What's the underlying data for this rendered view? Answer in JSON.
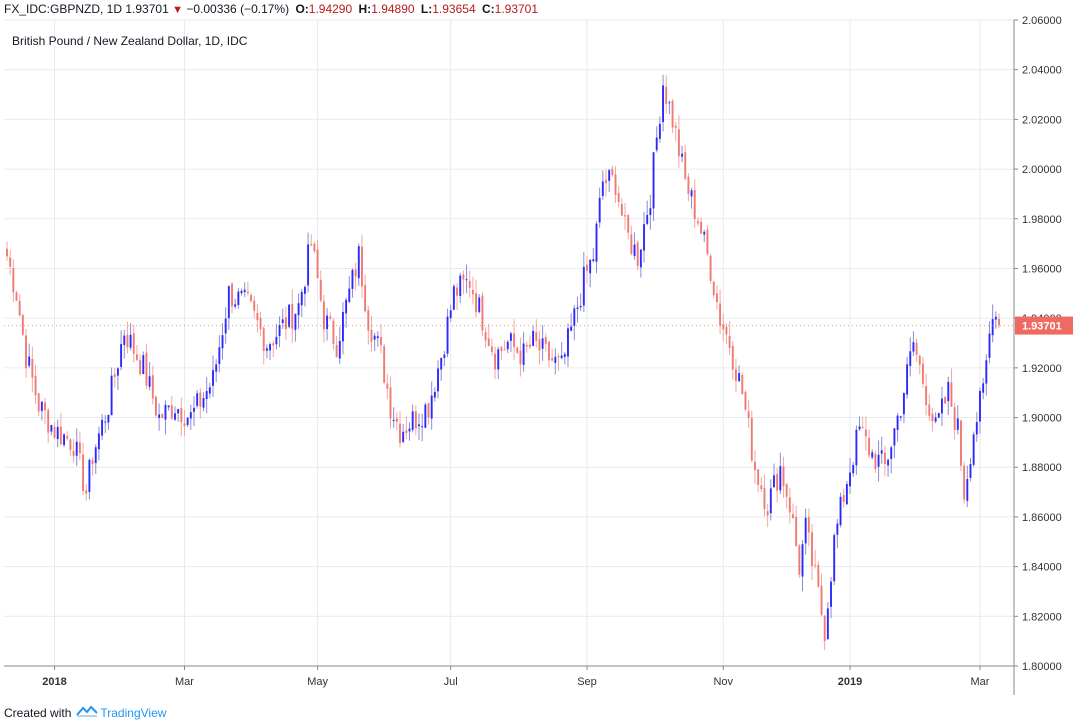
{
  "header": {
    "symbol": "FX_IDC:GBPNZD, 1D",
    "last": "1.93701",
    "change": "−0.00336 (−0.17%)",
    "o_label": "O:",
    "o": "1.94290",
    "h_label": "H:",
    "h": "1.94890",
    "l_label": "L:",
    "l": "1.93654",
    "c_label": "C:",
    "c": "1.93701",
    "down_icon": "triangle-down-icon"
  },
  "title": "British Pound / New Zealand Dollar, 1D, IDC",
  "footer": {
    "prefix": "Created with",
    "brand": "TradingView",
    "brand_icon": "tradingview-logo-icon"
  },
  "colors": {
    "up": "#2a2aff",
    "down": "#f07a72",
    "wick": "#6f8fb0",
    "grid": "#e6ebf0",
    "last_price_bg": "#ef6a60",
    "brand": "#2196f3"
  },
  "chart_data": {
    "type": "candlestick",
    "title": "British Pound / New Zealand Dollar, 1D, IDC",
    "xlabel": "",
    "ylabel": "",
    "ylim": [
      1.8,
      2.06
    ],
    "y_ticks": [
      1.8,
      1.82,
      1.84,
      1.86,
      1.88,
      1.9,
      1.92,
      1.94,
      1.96,
      1.98,
      2.0,
      2.02,
      2.04,
      2.06
    ],
    "y_tick_labels": [
      "1.80000",
      "1.82000",
      "1.84000",
      "1.86000",
      "1.88000",
      "1.90000",
      "1.92000",
      "1.94000",
      "1.96000",
      "1.98000",
      "2.00000",
      "2.02000",
      "2.04000",
      "2.06000"
    ],
    "x_ticks": [
      {
        "label": "2018",
        "bold": true,
        "index": 15
      },
      {
        "label": "Mar",
        "bold": false,
        "index": 56
      },
      {
        "label": "May",
        "bold": false,
        "index": 98
      },
      {
        "label": "Jul",
        "bold": false,
        "index": 140
      },
      {
        "label": "Sep",
        "bold": false,
        "index": 183
      },
      {
        "label": "Nov",
        "bold": false,
        "index": 226
      },
      {
        "label": "2019",
        "bold": true,
        "index": 266
      },
      {
        "label": "Mar",
        "bold": false,
        "index": 307
      }
    ],
    "grid": true,
    "last_price": 1.93701,
    "last_price_label": "1.93701",
    "close_keypoints": [
      [
        0,
        1.965
      ],
      [
        3,
        1.95
      ],
      [
        6,
        1.925
      ],
      [
        10,
        1.905
      ],
      [
        15,
        1.895
      ],
      [
        21,
        1.89
      ],
      [
        25,
        1.87
      ],
      [
        27,
        1.885
      ],
      [
        32,
        1.905
      ],
      [
        37,
        1.935
      ],
      [
        43,
        1.92
      ],
      [
        48,
        1.9
      ],
      [
        53,
        1.905
      ],
      [
        58,
        1.9
      ],
      [
        65,
        1.915
      ],
      [
        70,
        1.95
      ],
      [
        76,
        1.945
      ],
      [
        82,
        1.93
      ],
      [
        86,
        1.935
      ],
      [
        92,
        1.945
      ],
      [
        96,
        1.97
      ],
      [
        100,
        1.94
      ],
      [
        104,
        1.93
      ],
      [
        108,
        1.95
      ],
      [
        111,
        1.965
      ],
      [
        114,
        1.94
      ],
      [
        118,
        1.925
      ],
      [
        121,
        1.905
      ],
      [
        124,
        1.895
      ],
      [
        129,
        1.9
      ],
      [
        133,
        1.905
      ],
      [
        137,
        1.925
      ],
      [
        141,
        1.95
      ],
      [
        146,
        1.955
      ],
      [
        150,
        1.94
      ],
      [
        154,
        1.925
      ],
      [
        158,
        1.93
      ],
      [
        163,
        1.925
      ],
      [
        166,
        1.93
      ],
      [
        170,
        1.925
      ],
      [
        175,
        1.92
      ],
      [
        178,
        1.935
      ],
      [
        182,
        1.955
      ],
      [
        185,
        1.965
      ],
      [
        188,
        1.995
      ],
      [
        192,
        1.995
      ],
      [
        195,
        1.975
      ],
      [
        199,
        1.965
      ],
      [
        203,
        1.99
      ],
      [
        207,
        2.035
      ],
      [
        210,
        2.02
      ],
      [
        214,
        1.995
      ],
      [
        218,
        1.98
      ],
      [
        222,
        1.96
      ],
      [
        225,
        1.94
      ],
      [
        228,
        1.93
      ],
      [
        232,
        1.91
      ],
      [
        236,
        1.88
      ],
      [
        240,
        1.865
      ],
      [
        244,
        1.88
      ],
      [
        247,
        1.865
      ],
      [
        250,
        1.84
      ],
      [
        252,
        1.855
      ],
      [
        255,
        1.835
      ],
      [
        258,
        1.815
      ],
      [
        261,
        1.85
      ],
      [
        265,
        1.875
      ],
      [
        269,
        1.895
      ],
      [
        273,
        1.885
      ],
      [
        277,
        1.88
      ],
      [
        282,
        1.905
      ],
      [
        286,
        1.93
      ],
      [
        289,
        1.915
      ],
      [
        293,
        1.895
      ],
      [
        297,
        1.91
      ],
      [
        300,
        1.895
      ],
      [
        302,
        1.87
      ],
      [
        305,
        1.895
      ],
      [
        308,
        1.91
      ],
      [
        311,
        1.945
      ],
      [
        313,
        1.937
      ]
    ],
    "n_candles": 314
  }
}
